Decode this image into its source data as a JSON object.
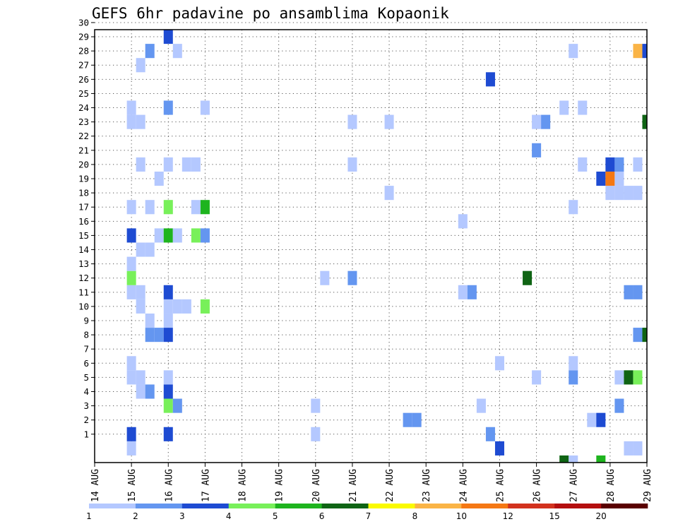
{
  "chart_data": {
    "type": "heatmap",
    "title": "GEFS 6hr padavine po ansamblima Kopaonik",
    "xlabel": "",
    "ylabel": "",
    "x_tick_labels": [
      "14 AUG",
      "15 AUG",
      "16 AUG",
      "17 AUG",
      "18 AUG",
      "19 AUG",
      "20 AUG",
      "21 AUG",
      "22 AUG",
      "23 AUG",
      "24 AUG",
      "25 AUG",
      "26 AUG",
      "27 AUG",
      "28 AUG",
      "29 AUG"
    ],
    "y_tick_labels": [
      "1",
      "2",
      "3",
      "4",
      "5",
      "6",
      "7",
      "8",
      "9",
      "10",
      "11",
      "12",
      "13",
      "14",
      "15",
      "16",
      "17",
      "18",
      "19",
      "20",
      "21",
      "22",
      "23",
      "24",
      "25",
      "26",
      "27",
      "28",
      "29",
      "30"
    ],
    "y_members": 30,
    "x_steps_per_day": 4,
    "grid": true,
    "legend": {
      "placement": "bottom",
      "labels": [
        "1",
        "2",
        "3",
        "4",
        "5",
        "6",
        "7",
        "8",
        "10",
        "12",
        "15",
        "20"
      ],
      "colors": [
        "#b4c8ff",
        "#6496f0",
        "#1e4bd2",
        "#78f05a",
        "#1eb41e",
        "#0f6414",
        "#fafa00",
        "#fab446",
        "#f57814",
        "#d2321e",
        "#b40f0f",
        "#5a0000"
      ]
    },
    "cells": [
      {
        "x": 1,
        "m": 0,
        "c": 0
      },
      {
        "x": 1,
        "m": 1,
        "c": 2
      },
      {
        "x": 1,
        "m": 5,
        "c": 0
      },
      {
        "x": 1,
        "m": 6,
        "c": 0
      },
      {
        "x": 1,
        "m": 11,
        "c": 0
      },
      {
        "x": 1,
        "m": 12,
        "c": 3
      },
      {
        "x": 1,
        "m": 13,
        "c": 0
      },
      {
        "x": 1,
        "m": 15,
        "c": 2
      },
      {
        "x": 1,
        "m": 17,
        "c": 0
      },
      {
        "x": 1,
        "m": 23,
        "c": 0
      },
      {
        "x": 1,
        "m": 24,
        "c": 0
      },
      {
        "x": 1.25,
        "m": 4,
        "c": 0
      },
      {
        "x": 1.25,
        "m": 5,
        "c": 0
      },
      {
        "x": 1.25,
        "m": 10,
        "c": 0
      },
      {
        "x": 1.25,
        "m": 11,
        "c": 0
      },
      {
        "x": 1.25,
        "m": 14,
        "c": 0
      },
      {
        "x": 1.25,
        "m": 20,
        "c": 0
      },
      {
        "x": 1.25,
        "m": 23,
        "c": 0
      },
      {
        "x": 1.25,
        "m": 27,
        "c": 0
      },
      {
        "x": 1.5,
        "m": 4,
        "c": 1
      },
      {
        "x": 1.5,
        "m": 8,
        "c": 1
      },
      {
        "x": 1.5,
        "m": 9,
        "c": 0
      },
      {
        "x": 1.5,
        "m": 14,
        "c": 0
      },
      {
        "x": 1.5,
        "m": 17,
        "c": 0
      },
      {
        "x": 1.5,
        "m": 28,
        "c": 1
      },
      {
        "x": 1.75,
        "m": 8,
        "c": 1
      },
      {
        "x": 1.75,
        "m": 15,
        "c": 0
      },
      {
        "x": 1.75,
        "m": 19,
        "c": 0
      },
      {
        "x": 2,
        "m": 1,
        "c": 2
      },
      {
        "x": 2,
        "m": 3,
        "c": 3
      },
      {
        "x": 2,
        "m": 4,
        "c": 2
      },
      {
        "x": 2,
        "m": 5,
        "c": 0
      },
      {
        "x": 2,
        "m": 8,
        "c": 2
      },
      {
        "x": 2,
        "m": 9,
        "c": 0
      },
      {
        "x": 2,
        "m": 10,
        "c": 0
      },
      {
        "x": 2,
        "m": 11,
        "c": 2
      },
      {
        "x": 2,
        "m": 15,
        "c": 4
      },
      {
        "x": 2,
        "m": 17,
        "c": 3
      },
      {
        "x": 2,
        "m": 20,
        "c": 0
      },
      {
        "x": 2,
        "m": 24,
        "c": 1
      },
      {
        "x": 2,
        "m": 29,
        "c": 2
      },
      {
        "x": 2.25,
        "m": 3,
        "c": 1
      },
      {
        "x": 2.25,
        "m": 10,
        "c": 0
      },
      {
        "x": 2.25,
        "m": 15,
        "c": 0
      },
      {
        "x": 2.25,
        "m": 28,
        "c": 0
      },
      {
        "x": 2.5,
        "m": 10,
        "c": 0
      },
      {
        "x": 2.5,
        "m": 20,
        "c": 0
      },
      {
        "x": 2.75,
        "m": 15,
        "c": 3
      },
      {
        "x": 2.75,
        "m": 17,
        "c": 0
      },
      {
        "x": 2.75,
        "m": 20,
        "c": 0
      },
      {
        "x": 3,
        "m": 10,
        "c": 3
      },
      {
        "x": 3,
        "m": 15,
        "c": 1
      },
      {
        "x": 3,
        "m": 17,
        "c": 4
      },
      {
        "x": 3,
        "m": 24,
        "c": 0
      },
      {
        "x": 6,
        "m": 1,
        "c": 0
      },
      {
        "x": 6,
        "m": 3,
        "c": 0
      },
      {
        "x": 6.25,
        "m": 12,
        "c": 0
      },
      {
        "x": 7,
        "m": 12,
        "c": 1
      },
      {
        "x": 7,
        "m": 20,
        "c": 0
      },
      {
        "x": 7,
        "m": 23,
        "c": 0
      },
      {
        "x": 8,
        "m": 18,
        "c": 0
      },
      {
        "x": 8,
        "m": 23,
        "c": 0
      },
      {
        "x": 8.5,
        "m": 2,
        "c": 1
      },
      {
        "x": 8.75,
        "m": 2,
        "c": 1
      },
      {
        "x": 10,
        "m": 11,
        "c": 0
      },
      {
        "x": 10,
        "m": 16,
        "c": 0
      },
      {
        "x": 10.25,
        "m": 11,
        "c": 1
      },
      {
        "x": 10.5,
        "m": 3,
        "c": 0
      },
      {
        "x": 10.75,
        "m": 1,
        "c": 1
      },
      {
        "x": 10.75,
        "m": 26,
        "c": 2
      },
      {
        "x": 11,
        "m": 0,
        "c": 2
      },
      {
        "x": 11,
        "m": 6,
        "c": 0
      },
      {
        "x": 11.75,
        "m": 12,
        "c": 5
      },
      {
        "x": 12,
        "m": 5,
        "c": 0
      },
      {
        "x": 12,
        "m": 21,
        "c": 1
      },
      {
        "x": 12,
        "m": 23,
        "c": 0
      },
      {
        "x": 12.25,
        "m": 23,
        "c": 1
      },
      {
        "x": 12.75,
        "m": -1,
        "c": 5
      },
      {
        "x": 12.75,
        "m": 24,
        "c": 0
      },
      {
        "x": 13,
        "m": -1,
        "c": 0
      },
      {
        "x": 13,
        "m": 5,
        "c": 1
      },
      {
        "x": 13,
        "m": 6,
        "c": 0
      },
      {
        "x": 13,
        "m": 17,
        "c": 0
      },
      {
        "x": 13,
        "m": 28,
        "c": 0
      },
      {
        "x": 13.25,
        "m": 20,
        "c": 0
      },
      {
        "x": 13.25,
        "m": 24,
        "c": 0
      },
      {
        "x": 13.5,
        "m": 2,
        "c": 0
      },
      {
        "x": 13.75,
        "m": -1,
        "c": 4
      },
      {
        "x": 13.75,
        "m": 2,
        "c": 2
      },
      {
        "x": 13.75,
        "m": 19,
        "c": 2
      },
      {
        "x": 14,
        "m": 18,
        "c": 0
      },
      {
        "x": 14,
        "m": 19,
        "c": 8
      },
      {
        "x": 14,
        "m": 20,
        "c": 2
      },
      {
        "x": 14.25,
        "m": 3,
        "c": 1
      },
      {
        "x": 14.25,
        "m": 5,
        "c": 0
      },
      {
        "x": 14.25,
        "m": 18,
        "c": 0
      },
      {
        "x": 14.25,
        "m": 19,
        "c": 0
      },
      {
        "x": 14.25,
        "m": 20,
        "c": 1
      },
      {
        "x": 14.5,
        "m": 0,
        "c": 0
      },
      {
        "x": 14.5,
        "m": 5,
        "c": 5
      },
      {
        "x": 14.5,
        "m": 11,
        "c": 1
      },
      {
        "x": 14.5,
        "m": 18,
        "c": 0
      },
      {
        "x": 14.75,
        "m": 0,
        "c": 0
      },
      {
        "x": 14.75,
        "m": 5,
        "c": 3
      },
      {
        "x": 14.75,
        "m": 8,
        "c": 1
      },
      {
        "x": 14.75,
        "m": 11,
        "c": 1
      },
      {
        "x": 14.75,
        "m": 18,
        "c": 0
      },
      {
        "x": 14.75,
        "m": 20,
        "c": 0
      },
      {
        "x": 14.75,
        "m": 28,
        "c": 7
      },
      {
        "x": 15,
        "m": 8,
        "c": 5
      },
      {
        "x": 15,
        "m": 23,
        "c": 5
      },
      {
        "x": 15,
        "m": 28,
        "c": 2
      }
    ]
  }
}
